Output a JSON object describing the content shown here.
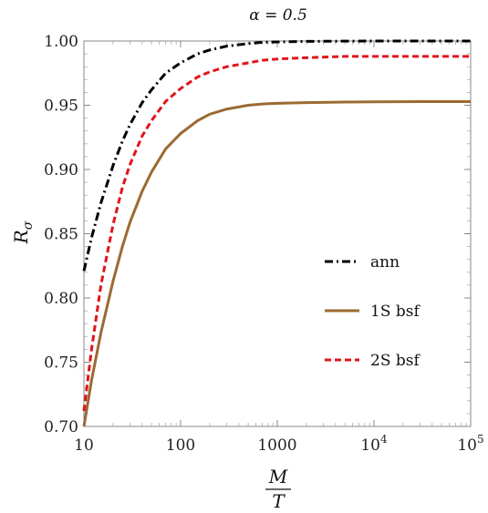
{
  "chart_data": {
    "type": "line",
    "title": "α = 0.5",
    "xlabel": {
      "numerator": "M",
      "denominator": "T"
    },
    "ylabel": {
      "base": "R",
      "subscript": "σ"
    },
    "x_scale": "log",
    "xlim": [
      10,
      100000
    ],
    "ylim": [
      0.7,
      1.0
    ],
    "x_ticks": [
      {
        "value": 10,
        "label": "10"
      },
      {
        "value": 100,
        "label": "100"
      },
      {
        "value": 1000,
        "label": "1000"
      },
      {
        "value": 10000,
        "label": "10",
        "exp": "4"
      },
      {
        "value": 100000,
        "label": "10",
        "exp": "5"
      }
    ],
    "y_ticks": [
      {
        "value": 0.7,
        "label": "0.70"
      },
      {
        "value": 0.75,
        "label": "0.75"
      },
      {
        "value": 0.8,
        "label": "0.80"
      },
      {
        "value": 0.85,
        "label": "0.85"
      },
      {
        "value": 0.9,
        "label": "0.90"
      },
      {
        "value": 0.95,
        "label": "0.95"
      },
      {
        "value": 1.0,
        "label": "1.00"
      }
    ],
    "grid": false,
    "legend_position": "right-middle",
    "series": [
      {
        "name": "ann",
        "color": "#000000",
        "dash": "dash-dot",
        "x": [
          10,
          12,
          15,
          20,
          25,
          30,
          40,
          50,
          70,
          100,
          150,
          200,
          300,
          500,
          700,
          1000,
          2000,
          5000,
          10000,
          30000,
          100000
        ],
        "y": [
          0.821,
          0.847,
          0.874,
          0.903,
          0.922,
          0.935,
          0.952,
          0.962,
          0.975,
          0.983,
          0.99,
          0.993,
          0.996,
          0.998,
          0.999,
          0.9993,
          0.9997,
          0.9999,
          1.0,
          1.0,
          1.0
        ]
      },
      {
        "name": "1S bsf",
        "color": "#9b6a33",
        "dash": "solid",
        "x": [
          10,
          12,
          15,
          20,
          25,
          30,
          40,
          50,
          70,
          100,
          150,
          200,
          300,
          500,
          700,
          1000,
          2000,
          5000,
          10000,
          30000,
          100000
        ],
        "y": [
          0.7,
          0.736,
          0.773,
          0.813,
          0.84,
          0.859,
          0.883,
          0.898,
          0.916,
          0.928,
          0.938,
          0.943,
          0.947,
          0.95,
          0.951,
          0.9515,
          0.952,
          0.9525,
          0.9527,
          0.9528,
          0.9528
        ]
      },
      {
        "name": "2S bsf",
        "color": "#e0141b",
        "dash": "dashed",
        "x": [
          10,
          12,
          15,
          20,
          25,
          30,
          40,
          50,
          70,
          100,
          150,
          200,
          300,
          500,
          700,
          1000,
          2000,
          5000,
          10000,
          30000,
          100000
        ],
        "y": [
          0.712,
          0.76,
          0.81,
          0.857,
          0.886,
          0.904,
          0.926,
          0.938,
          0.953,
          0.963,
          0.972,
          0.976,
          0.98,
          0.983,
          0.985,
          0.986,
          0.987,
          0.988,
          0.988,
          0.988,
          0.988
        ]
      }
    ]
  }
}
